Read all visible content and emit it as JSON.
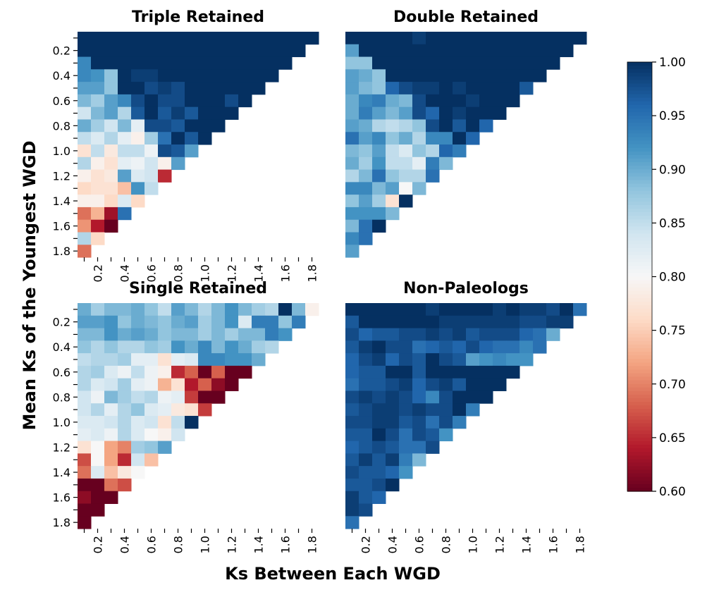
{
  "figure": {
    "xlabel": "Ks Between Each WGD",
    "ylabel": "Mean Ks of the Youngest WGD"
  },
  "colormap": {
    "name": "RdBu",
    "vmin": 0.6,
    "vmax": 1.0,
    "stops": [
      "#67001f",
      "#b2182b",
      "#d6604d",
      "#f4a582",
      "#fddbc7",
      "#f7f7f7",
      "#d1e5f0",
      "#92c5de",
      "#4393c3",
      "#2166ac",
      "#053061"
    ],
    "ticks": [
      "1.00",
      "0.95",
      "0.90",
      "0.85",
      "0.80",
      "0.75",
      "0.70",
      "0.65",
      "0.60"
    ]
  },
  "chart_data": [
    {
      "type": "heatmap",
      "title": "Triple Retained",
      "x_ticks": [
        "0.2",
        "0.4",
        "0.6",
        "0.8",
        "1.0",
        "1.2",
        "1.4",
        "1.6",
        "1.8"
      ],
      "y_ticks": [
        "0.2",
        "0.4",
        "0.6",
        "0.8",
        "1.0",
        "1.2",
        "1.4",
        "1.6",
        "1.8"
      ],
      "x_values": [
        0.1,
        0.2,
        0.3,
        0.4,
        0.5,
        0.6,
        0.7,
        0.8,
        0.9,
        1.0,
        1.1,
        1.2,
        1.3,
        1.4,
        1.5,
        1.6,
        1.7,
        1.8
      ],
      "y_values": [
        0.1,
        0.2,
        0.3,
        0.4,
        0.5,
        0.6,
        0.7,
        0.8,
        0.9,
        1.0,
        1.1,
        1.2,
        1.3,
        1.4,
        1.5,
        1.6,
        1.7,
        1.8
      ],
      "rows": [
        [
          1,
          1,
          1,
          1,
          1,
          1,
          1,
          1,
          1,
          1,
          1,
          1,
          1,
          1,
          1,
          1,
          1,
          1
        ],
        [
          1,
          1,
          1,
          1,
          1,
          1,
          1,
          1,
          1,
          1,
          1,
          1,
          1,
          1,
          1,
          1,
          1
        ],
        [
          0.93,
          1,
          1,
          1,
          1,
          1,
          1,
          1,
          1,
          1,
          1,
          1,
          1,
          1,
          1,
          1
        ],
        [
          0.93,
          0.92,
          0.88,
          1,
          0.99,
          0.99,
          1,
          1,
          1,
          1,
          1,
          1,
          1,
          1,
          1
        ],
        [
          0.91,
          0.91,
          0.88,
          1,
          1,
          0.98,
          0.99,
          0.98,
          1,
          1,
          1,
          1,
          1,
          1
        ],
        [
          0.89,
          0.87,
          0.91,
          0.93,
          0.98,
          1,
          0.98,
          0.98,
          1,
          1,
          1,
          0.98,
          1
        ],
        [
          0.84,
          0.89,
          0.91,
          0.86,
          0.97,
          1,
          0.97,
          0.99,
          0.97,
          1,
          1,
          1
        ],
        [
          0.9,
          0.87,
          0.84,
          0.89,
          0.82,
          0.98,
          0.98,
          0.97,
          1,
          1,
          1
        ],
        [
          0.85,
          0.83,
          0.86,
          0.82,
          0.79,
          0.87,
          0.95,
          1,
          0.97,
          1
        ],
        [
          0.77,
          0.85,
          0.78,
          0.85,
          0.85,
          0.81,
          0.98,
          0.97,
          0.91
        ],
        [
          0.86,
          0.79,
          0.77,
          0.82,
          0.81,
          0.84,
          0.79,
          0.91
        ],
        [
          0.79,
          0.77,
          0.78,
          0.91,
          0.83,
          0.84,
          0.65
        ],
        [
          0.76,
          0.77,
          0.77,
          0.74,
          0.92,
          0.85
        ],
        [
          0.79,
          0.79,
          0.76,
          0.83,
          0.76
        ],
        [
          0.69,
          0.73,
          0.63,
          0.95
        ],
        [
          0.71,
          0.64,
          0.6
        ],
        [
          0.86,
          0.76
        ],
        [
          0.69
        ]
      ]
    },
    {
      "type": "heatmap",
      "title": "Double Retained",
      "x_ticks": [],
      "y_ticks": [],
      "x_values": [
        0.1,
        0.2,
        0.3,
        0.4,
        0.5,
        0.6,
        0.7,
        0.8,
        0.9,
        1.0,
        1.1,
        1.2,
        1.3,
        1.4,
        1.5,
        1.6,
        1.7,
        1.8
      ],
      "y_values": [
        0.1,
        0.2,
        0.3,
        0.4,
        0.5,
        0.6,
        0.7,
        0.8,
        0.9,
        1.0,
        1.1,
        1.2,
        1.3,
        1.4,
        1.5,
        1.6,
        1.7,
        1.8
      ],
      "rows": [
        [
          1,
          1,
          1,
          1,
          1,
          0.99,
          1,
          1,
          1,
          1,
          1,
          1,
          1,
          1,
          1,
          1,
          1,
          1
        ],
        [
          0.91,
          1,
          1,
          1,
          1,
          1,
          1,
          1,
          1,
          1,
          1,
          1,
          1,
          1,
          1,
          1,
          1
        ],
        [
          0.88,
          0.88,
          1,
          1,
          1,
          1,
          1,
          1,
          1,
          1,
          1,
          1,
          1,
          1,
          1,
          1
        ],
        [
          0.91,
          0.9,
          0.88,
          1,
          1,
          1,
          1,
          1,
          1,
          1,
          1,
          1,
          1,
          1,
          1
        ],
        [
          0.91,
          0.89,
          0.88,
          0.96,
          0.98,
          0.99,
          0.99,
          1,
          0.99,
          1,
          1,
          1,
          1,
          0.97
        ],
        [
          0.9,
          0.93,
          0.94,
          0.9,
          0.89,
          0.98,
          1,
          1,
          1,
          0.99,
          1,
          1,
          1
        ],
        [
          0.9,
          0.94,
          0.91,
          0.89,
          0.91,
          0.98,
          0.96,
          1,
          0.99,
          1,
          1,
          1
        ],
        [
          0.91,
          0.9,
          0.86,
          0.85,
          0.86,
          0.88,
          0.98,
          1,
          0.97,
          1,
          0.96
        ],
        [
          0.95,
          0.91,
          0.93,
          0.88,
          0.9,
          0.86,
          0.93,
          0.93,
          1,
          0.96
        ],
        [
          0.89,
          0.88,
          0.91,
          0.85,
          0.83,
          0.88,
          0.86,
          0.96,
          0.94
        ],
        [
          0.9,
          0.87,
          0.92,
          0.85,
          0.85,
          0.82,
          0.94,
          0.89
        ],
        [
          0.86,
          0.89,
          0.95,
          0.88,
          0.86,
          0.86,
          0.95
        ],
        [
          0.93,
          0.93,
          0.89,
          0.91,
          0.8,
          0.89
        ],
        [
          0.88,
          0.91,
          0.87,
          0.77,
          1.0
        ],
        [
          0.92,
          0.92,
          0.92,
          0.89
        ],
        [
          0.89,
          0.95,
          1.0
        ],
        [
          0.93,
          0.95
        ],
        [
          0.91
        ]
      ]
    },
    {
      "type": "heatmap",
      "title": "Single Retained",
      "x_ticks": [
        "0.2",
        "0.4",
        "0.6",
        "0.8",
        "1.0",
        "1.2",
        "1.4",
        "1.6",
        "1.8"
      ],
      "y_ticks": [
        "0.2",
        "0.4",
        "0.6",
        "0.8",
        "1.0",
        "1.2",
        "1.4",
        "1.6",
        "1.8"
      ],
      "x_values": [
        0.1,
        0.2,
        0.3,
        0.4,
        0.5,
        0.6,
        0.7,
        0.8,
        0.9,
        1.0,
        1.1,
        1.2,
        1.3,
        1.4,
        1.5,
        1.6,
        1.7,
        1.8
      ],
      "y_values": [
        0.1,
        0.2,
        0.3,
        0.4,
        0.5,
        0.6,
        0.7,
        0.8,
        0.9,
        1.0,
        1.1,
        1.2,
        1.3,
        1.4,
        1.5,
        1.6,
        1.7,
        1.8
      ],
      "rows": [
        [
          0.9,
          0.87,
          0.89,
          0.89,
          0.9,
          0.88,
          0.85,
          0.91,
          0.89,
          0.86,
          0.89,
          0.92,
          0.89,
          0.87,
          0.86,
          1.0,
          0.89,
          0.79
        ],
        [
          0.91,
          0.91,
          0.92,
          0.88,
          0.9,
          0.89,
          0.88,
          0.9,
          0.91,
          0.87,
          0.89,
          0.92,
          0.83,
          0.94,
          0.94,
          0.88,
          0.94
        ],
        [
          0.89,
          0.89,
          0.92,
          0.9,
          0.91,
          0.9,
          0.88,
          0.89,
          0.89,
          0.87,
          0.89,
          0.87,
          0.89,
          0.89,
          0.94,
          0.92
        ],
        [
          0.88,
          0.86,
          0.88,
          0.86,
          0.86,
          0.88,
          0.87,
          0.92,
          0.9,
          0.93,
          0.89,
          0.92,
          0.9,
          0.87,
          0.86
        ],
        [
          0.85,
          0.86,
          0.86,
          0.87,
          0.82,
          0.82,
          0.77,
          0.82,
          0.83,
          0.93,
          0.93,
          0.92,
          0.92,
          0.9
        ],
        [
          0.86,
          0.87,
          0.83,
          0.81,
          0.85,
          0.81,
          0.79,
          0.65,
          0.68,
          0.6,
          0.68,
          0.6,
          0.6
        ],
        [
          0.86,
          0.83,
          0.84,
          0.87,
          0.82,
          0.81,
          0.73,
          0.77,
          0.64,
          0.68,
          0.62,
          0.6
        ],
        [
          0.84,
          0.81,
          0.89,
          0.87,
          0.85,
          0.86,
          0.81,
          0.82,
          0.66,
          0.6,
          0.6
        ],
        [
          0.84,
          0.86,
          0.82,
          0.86,
          0.88,
          0.83,
          0.82,
          0.78,
          0.77,
          0.66
        ],
        [
          0.83,
          0.83,
          0.84,
          0.86,
          0.83,
          0.84,
          0.77,
          0.85,
          1.0
        ],
        [
          0.82,
          0.83,
          0.81,
          0.86,
          0.83,
          0.8,
          0.79,
          0.84
        ],
        [
          0.77,
          0.8,
          0.72,
          0.7,
          0.87,
          0.88,
          0.91
        ],
        [
          0.67,
          0.8,
          0.72,
          0.65,
          0.84,
          0.74
        ],
        [
          0.69,
          0.83,
          0.74,
          0.78,
          0.8
        ],
        [
          0.6,
          0.6,
          0.69,
          0.67
        ],
        [
          0.62,
          0.6,
          0.6
        ],
        [
          0.6,
          0.6
        ],
        [
          0.6
        ]
      ]
    },
    {
      "type": "heatmap",
      "title": "Non-Paleologs",
      "x_ticks": [
        "0.2",
        "0.4",
        "0.6",
        "0.8",
        "1.0",
        "1.2",
        "1.4",
        "1.6",
        "1.8"
      ],
      "y_ticks": [],
      "x_values": [
        0.1,
        0.2,
        0.3,
        0.4,
        0.5,
        0.6,
        0.7,
        0.8,
        0.9,
        1.0,
        1.1,
        1.2,
        1.3,
        1.4,
        1.5,
        1.6,
        1.7,
        1.8
      ],
      "y_values": [
        0.1,
        0.2,
        0.3,
        0.4,
        0.5,
        0.6,
        0.7,
        0.8,
        0.9,
        1.0,
        1.1,
        1.2,
        1.3,
        1.4,
        1.5,
        1.6,
        1.7,
        1.8
      ],
      "rows": [
        [
          1,
          1,
          1,
          1,
          1,
          1,
          0.99,
          1,
          1,
          1,
          1,
          0.99,
          1,
          0.99,
          0.99,
          0.98,
          1,
          0.95
        ],
        [
          0.97,
          1,
          1,
          1,
          1,
          1,
          1,
          0.99,
          0.99,
          0.99,
          0.99,
          0.99,
          0.99,
          0.98,
          0.98,
          0.99,
          0.99
        ],
        [
          0.98,
          0.96,
          0.97,
          0.97,
          0.98,
          0.98,
          0.99,
          0.98,
          0.99,
          0.97,
          0.98,
          0.98,
          0.98,
          0.96,
          0.95,
          0.9
        ],
        [
          0.97,
          0.99,
          1,
          0.98,
          0.98,
          0.95,
          0.96,
          0.97,
          0.96,
          0.98,
          0.96,
          0.95,
          0.95,
          0.93,
          0.95
        ],
        [
          0.96,
          0.98,
          0.99,
          0.96,
          0.98,
          0.97,
          1,
          0.98,
          0.97,
          0.91,
          0.92,
          0.93,
          0.92,
          0.92
        ],
        [
          0.96,
          0.97,
          0.97,
          1,
          1,
          0.97,
          1,
          1,
          1,
          1,
          1,
          1,
          1
        ],
        [
          0.95,
          0.97,
          0.97,
          0.98,
          0.99,
          0.96,
          0.98,
          0.99,
          0.97,
          1,
          1,
          1
        ],
        [
          0.98,
          0.99,
          0.98,
          0.99,
          0.98,
          0.96,
          0.93,
          0.98,
          1,
          1,
          1
        ],
        [
          0.97,
          0.98,
          0.99,
          0.99,
          0.98,
          0.99,
          0.98,
          0.98,
          1,
          0.94
        ],
        [
          0.98,
          0.98,
          0.99,
          0.99,
          0.97,
          0.98,
          0.95,
          0.98,
          0.94
        ],
        [
          0.97,
          0.97,
          1,
          0.98,
          0.95,
          0.98,
          0.97,
          0.92
        ],
        [
          0.96,
          0.97,
          0.98,
          0.97,
          0.95,
          0.95,
          0.98
        ],
        [
          0.97,
          0.99,
          0.97,
          0.99,
          0.94,
          0.89
        ],
        [
          0.98,
          0.97,
          0.97,
          0.96,
          0.92
        ],
        [
          0.97,
          0.97,
          0.98,
          1.0
        ],
        [
          0.99,
          0.97,
          0.96
        ],
        [
          0.99,
          0.98
        ],
        [
          0.95
        ]
      ]
    }
  ]
}
